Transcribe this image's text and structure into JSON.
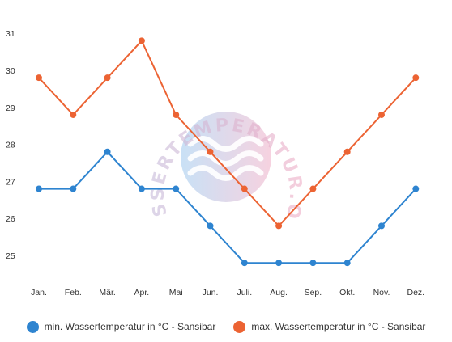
{
  "chart_data": {
    "type": "line",
    "title": "",
    "xlabel": "",
    "ylabel": "",
    "categories": [
      "Jan.",
      "Feb.",
      "Mär.",
      "Apr.",
      "Mai",
      "Jun.",
      "Juli.",
      "Aug.",
      "Sep.",
      "Okt.",
      "Nov.",
      "Dez."
    ],
    "y_ticks": [
      "25",
      "26",
      "27",
      "28",
      "29",
      "30",
      "31"
    ],
    "ylim": [
      24.6,
      31.3
    ],
    "grid": false,
    "legend_position": "bottom",
    "series": [
      {
        "name": "min. Wassertemperatur in °C - Sansibar",
        "color": "#2e84d0",
        "values": [
          26.8,
          26.8,
          27.8,
          26.8,
          26.8,
          25.8,
          24.8,
          24.8,
          24.8,
          24.8,
          25.8,
          26.8
        ]
      },
      {
        "name": "max. Wassertemperatur in °C - Sansibar",
        "color": "#ec6333",
        "values": [
          29.8,
          28.8,
          29.8,
          30.8,
          28.8,
          27.8,
          26.8,
          25.8,
          26.8,
          27.8,
          28.8,
          29.8
        ]
      }
    ],
    "watermark": "WASSERTEMPERATUR.ORG"
  }
}
